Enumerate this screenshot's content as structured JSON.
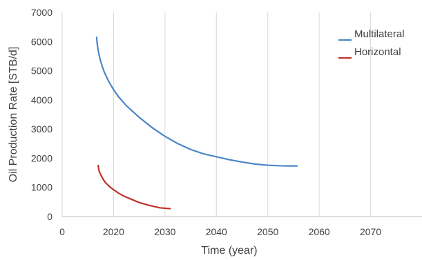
{
  "chart_data": {
    "type": "line",
    "title": "",
    "xlabel": "Time (year)",
    "ylabel": "Oil Production Rate [STB/d]",
    "xlim": [
      2010,
      2080
    ],
    "ylim": [
      0,
      7000
    ],
    "x_ticks": [
      "2020",
      "2030",
      "2040",
      "2050",
      "2060",
      "2070"
    ],
    "x_origin_label": "0",
    "y_ticks": [
      "0",
      "1000",
      "2000",
      "3000",
      "4000",
      "5000",
      "6000",
      "7000"
    ],
    "grid": {
      "vertical": true,
      "horizontal": false
    },
    "legend_position": "top-right",
    "series": [
      {
        "name": "Multilateral",
        "color": "#4a86c8",
        "x": [
          2016.7,
          2016.8,
          2017.0,
          2017.3,
          2017.7,
          2018.2,
          2019.0,
          2020.0,
          2021.0,
          2022.5,
          2025.0,
          2027.5,
          2030.0,
          2032.5,
          2035.0,
          2037.5,
          2040.0,
          2042.5,
          2045.0,
          2047.5,
          2050.0,
          2052.5,
          2054.0,
          2055.7
        ],
        "y": [
          6150,
          5950,
          5700,
          5450,
          5200,
          4950,
          4650,
          4350,
          4100,
          3800,
          3400,
          3050,
          2750,
          2500,
          2300,
          2150,
          2050,
          1950,
          1870,
          1800,
          1760,
          1740,
          1735,
          1735
        ]
      },
      {
        "name": "Horizontal",
        "color": "#c0312b",
        "x": [
          2017.0,
          2017.2,
          2017.6,
          2018.0,
          2018.5,
          2019.2,
          2020.0,
          2021.0,
          2022.0,
          2023.5,
          2025.0,
          2027.0,
          2029.0,
          2031.0
        ],
        "y": [
          1750,
          1550,
          1400,
          1270,
          1150,
          1030,
          920,
          800,
          700,
          590,
          480,
          380,
          300,
          270
        ]
      }
    ]
  }
}
